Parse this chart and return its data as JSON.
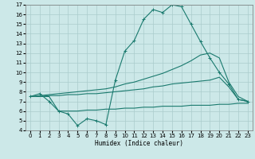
{
  "bg_color": "#cce8e8",
  "grid_color": "#aacccc",
  "line_color": "#1a7a6e",
  "xlabel": "Humidex (Indice chaleur)",
  "xlim": [
    -0.5,
    23.5
  ],
  "ylim": [
    4,
    17
  ],
  "xticks": [
    0,
    1,
    2,
    3,
    4,
    5,
    6,
    7,
    8,
    9,
    10,
    11,
    12,
    13,
    14,
    15,
    16,
    17,
    18,
    19,
    20,
    21,
    22,
    23
  ],
  "yticks": [
    4,
    5,
    6,
    7,
    8,
    9,
    10,
    11,
    12,
    13,
    14,
    15,
    16,
    17
  ],
  "line1_x": [
    0,
    1,
    2,
    3,
    4,
    5,
    6,
    7,
    8,
    9,
    10,
    11,
    12,
    13,
    14,
    15,
    16,
    17,
    18,
    19,
    20,
    21,
    22,
    23
  ],
  "line1_y": [
    7.5,
    7.8,
    7.0,
    6.0,
    5.7,
    4.5,
    5.2,
    5.0,
    4.6,
    9.2,
    12.2,
    13.3,
    15.5,
    16.5,
    16.2,
    17.0,
    16.8,
    15.0,
    13.2,
    11.5,
    10.0,
    8.8,
    7.2,
    7.0
  ],
  "line2_x": [
    0,
    1,
    2,
    3,
    4,
    5,
    6,
    7,
    8,
    9,
    10,
    11,
    12,
    13,
    14,
    15,
    16,
    17,
    18,
    19,
    20,
    21,
    22,
    23
  ],
  "line2_y": [
    7.5,
    7.6,
    7.7,
    7.8,
    7.9,
    8.0,
    8.1,
    8.2,
    8.3,
    8.5,
    8.8,
    9.0,
    9.3,
    9.6,
    9.9,
    10.3,
    10.7,
    11.2,
    11.8,
    12.0,
    11.5,
    9.0,
    7.5,
    7.0
  ],
  "line3_x": [
    0,
    1,
    2,
    3,
    4,
    5,
    6,
    7,
    8,
    9,
    10,
    11,
    12,
    13,
    14,
    15,
    16,
    17,
    18,
    19,
    20,
    21,
    22,
    23
  ],
  "line3_y": [
    7.5,
    7.5,
    7.6,
    7.6,
    7.7,
    7.7,
    7.8,
    7.8,
    7.9,
    8.0,
    8.1,
    8.2,
    8.3,
    8.5,
    8.6,
    8.8,
    8.9,
    9.0,
    9.1,
    9.2,
    9.5,
    8.5,
    7.2,
    7.0
  ],
  "line4_x": [
    0,
    1,
    2,
    3,
    4,
    5,
    6,
    7,
    8,
    9,
    10,
    11,
    12,
    13,
    14,
    15,
    16,
    17,
    18,
    19,
    20,
    21,
    22,
    23
  ],
  "line4_y": [
    7.5,
    7.5,
    7.5,
    6.0,
    6.0,
    6.0,
    6.1,
    6.1,
    6.2,
    6.2,
    6.3,
    6.3,
    6.4,
    6.4,
    6.5,
    6.5,
    6.5,
    6.6,
    6.6,
    6.6,
    6.7,
    6.7,
    6.8,
    6.8
  ]
}
